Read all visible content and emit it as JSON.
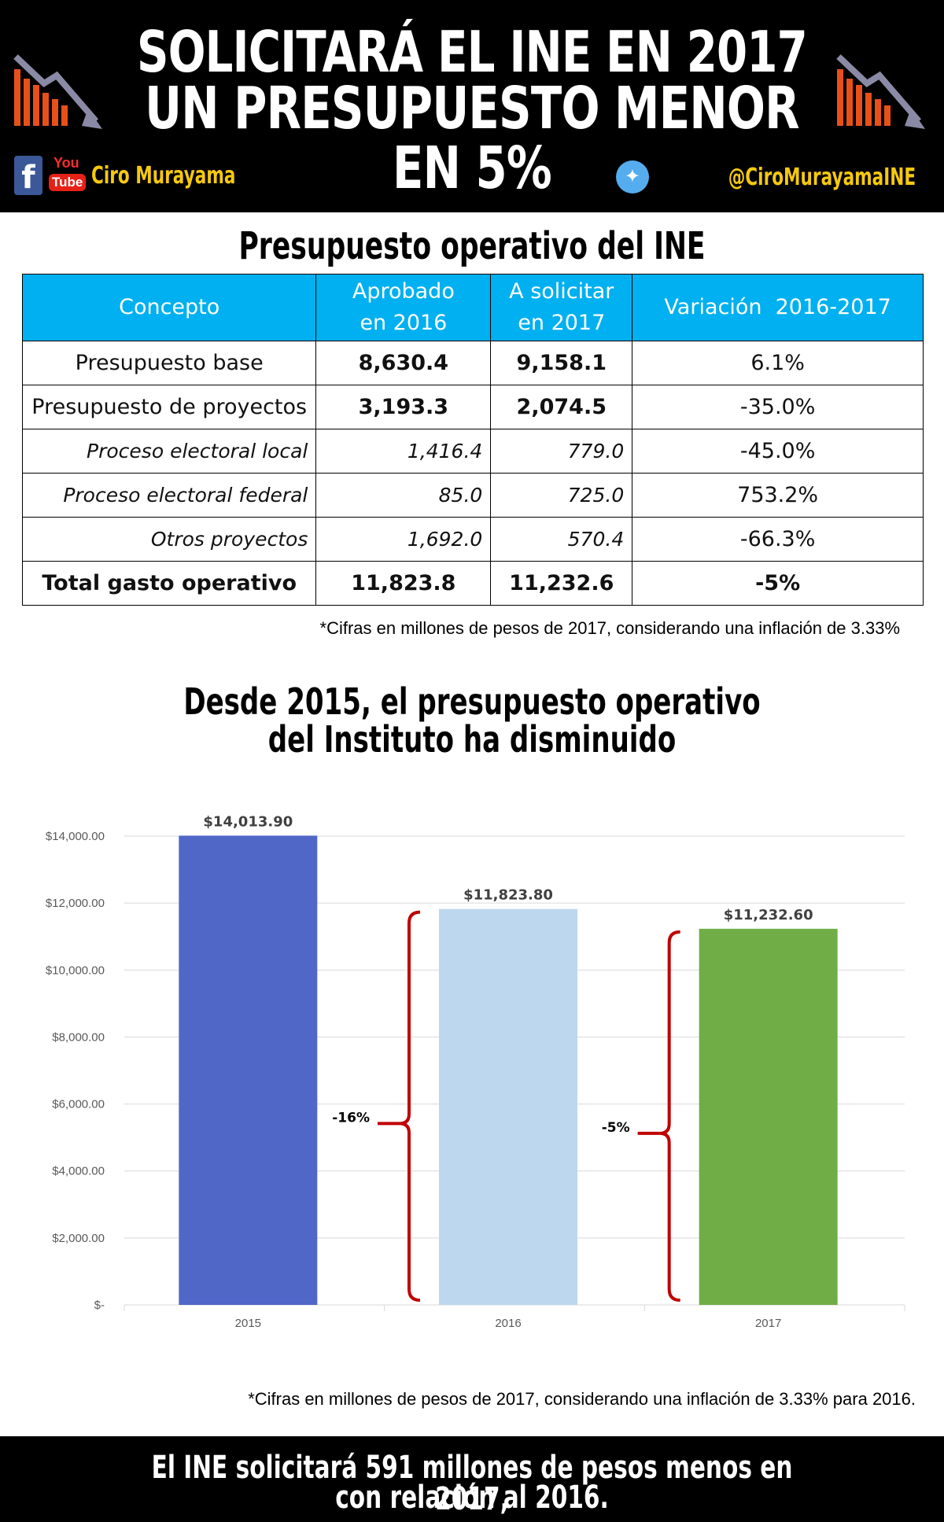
{
  "header": {
    "title_line1": "SOLICITARÁ EL INE EN 2017",
    "title_line2": "UN PRESUPUESTO MENOR EN 5%",
    "facebook_icon": "f",
    "youtube_you": "You",
    "youtube_tube": "Tube",
    "name": "Ciro Murayama",
    "twitter_handle": "@CiroMurayamaINE"
  },
  "table": {
    "title": "Presupuesto operativo del INE",
    "headers": [
      "Concepto",
      "Aprobado en 2016",
      "A solicitar en 2017",
      "Variación  2016-2017"
    ],
    "rows": [
      {
        "concept": "Presupuesto base",
        "y2016": "8,630.4",
        "y2017": "9,158.1",
        "var": "6.1%"
      },
      {
        "concept": "Presupuesto de proyectos",
        "y2016": "3,193.3",
        "y2017": "2,074.5",
        "var": "-35.0%"
      },
      {
        "concept": "Proceso electoral local",
        "y2016": "1,416.4",
        "y2017": "779.0",
        "var": "-45.0%"
      },
      {
        "concept": "Proceso electoral federal",
        "y2016": "85.0",
        "y2017": "725.0",
        "var": "753.2%"
      },
      {
        "concept": "Otros proyectos",
        "y2016": "1,692.0",
        "y2017": "570.4",
        "var": "-66.3%"
      },
      {
        "concept": "Total gasto operativo",
        "y2016": "11,823.8",
        "y2017": "11,232.6",
        "var": "-5%"
      }
    ],
    "note": "*Cifras en millones de pesos de 2017, considerando una inflación de 3.33%"
  },
  "chart_title_line1": "Desde 2015, el presupuesto operativo",
  "chart_title_line2": "del Instituto ha disminuido",
  "chart_data": {
    "type": "bar",
    "categories": [
      "2015",
      "2016",
      "2017"
    ],
    "values": [
      14013.9,
      11823.8,
      11232.6
    ],
    "data_labels": [
      "$14,013.90",
      "$11,823.80",
      "$11,232.60"
    ],
    "colors": [
      "#5067c8",
      "#bdd7ee",
      "#70ad47"
    ],
    "ylim": [
      0,
      14000
    ],
    "yticks": [
      0,
      2000,
      4000,
      6000,
      8000,
      10000,
      12000,
      14000
    ],
    "ytick_labels": [
      "$-",
      "$2,000.00",
      "$4,000.00",
      "$6,000.00",
      "$8,000.00",
      "$10,000.00",
      "$12,000.00",
      "$14,000.00"
    ],
    "annotations": [
      "-16%",
      "-5%"
    ],
    "bracket_color": "#c00000",
    "grid": true
  },
  "chart_note": "*Cifras en millones de pesos de 2017, considerando una inflación de 3.33% para 2016.",
  "footer": {
    "line1": "El INE solicitará 591 millones de pesos menos en 2017,",
    "line2": "con relación al 2016."
  }
}
